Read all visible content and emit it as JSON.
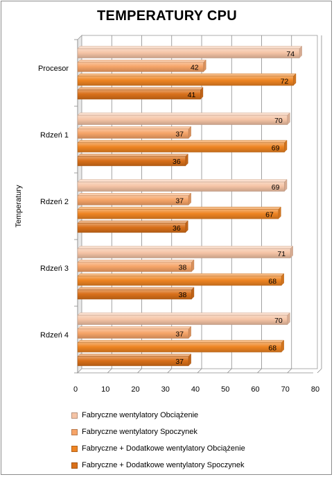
{
  "chart_data": {
    "type": "bar",
    "orientation": "horizontal",
    "title": "TEMPERATURY CPU",
    "xlabel": "",
    "ylabel": "Temperatury",
    "xlim": [
      0,
      80
    ],
    "x_ticks": [
      0,
      10,
      20,
      30,
      40,
      50,
      60,
      70,
      80
    ],
    "grid": true,
    "legend_position": "bottom",
    "categories": [
      "Procesor",
      "Rdzeń 1",
      "Rdzeń 2",
      "Rdzeń 3",
      "Rdzeń 4"
    ],
    "series": [
      {
        "name": "Fabryczne wentylatory Obciążenie",
        "color": "#f5c4a6",
        "values": [
          74,
          70,
          69,
          71,
          70
        ]
      },
      {
        "name": "Fabryczne wentylatory Spoczynek",
        "color": "#f6a468",
        "values": [
          42,
          37,
          37,
          38,
          37
        ]
      },
      {
        "name": "Fabryczne + Dodatkowe  wentylatory Obciążenie",
        "color": "#ee8422",
        "values": [
          72,
          69,
          67,
          68,
          68
        ]
      },
      {
        "name": "Fabryczne + Dodatkowe  wentylatory Spoczynek",
        "color": "#d9701a",
        "values": [
          41,
          36,
          36,
          38,
          37
        ]
      }
    ]
  }
}
